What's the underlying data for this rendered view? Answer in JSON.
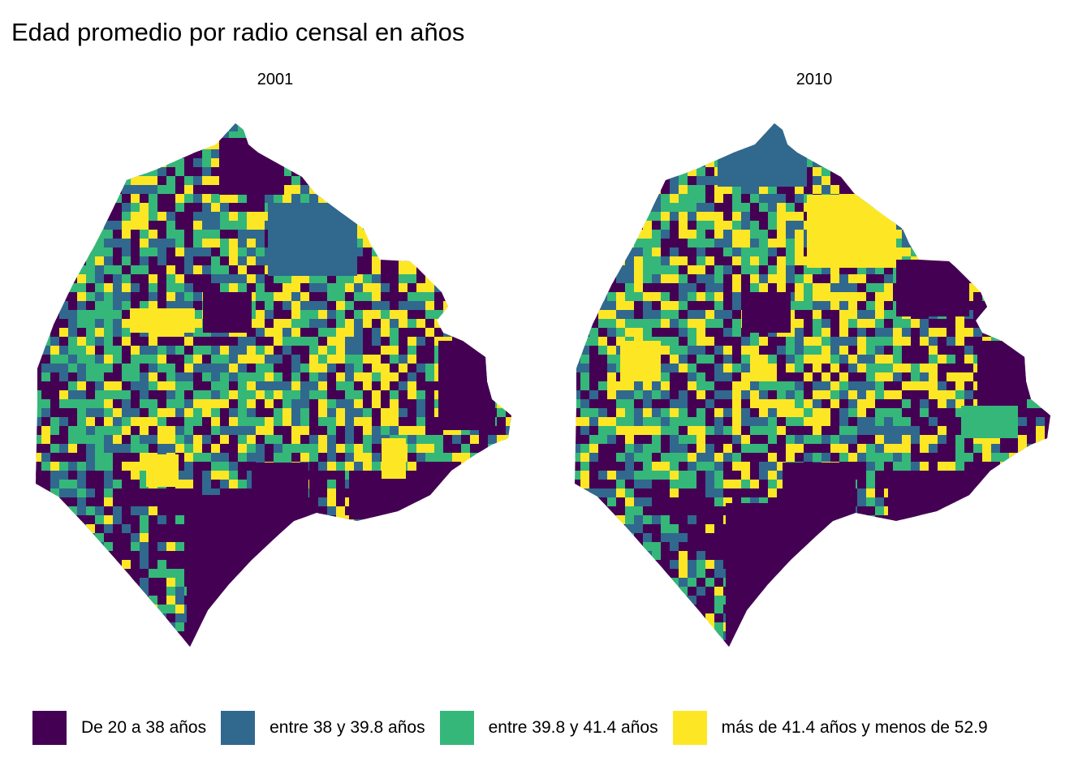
{
  "title": "Edad promedio por radio censal en años",
  "panels": [
    {
      "label": "2001"
    },
    {
      "label": "2010"
    }
  ],
  "legend": {
    "items": [
      {
        "label": "De 20 a 38 años",
        "color": "#440154"
      },
      {
        "label": "entre 38 y 39.8 años",
        "color": "#31688E"
      },
      {
        "label": "entre 39.8 y 41.4 años",
        "color": "#35B779"
      },
      {
        "label": "más de 41.4 años y menos de 52.9",
        "color": "#FDE725"
      }
    ]
  }
}
